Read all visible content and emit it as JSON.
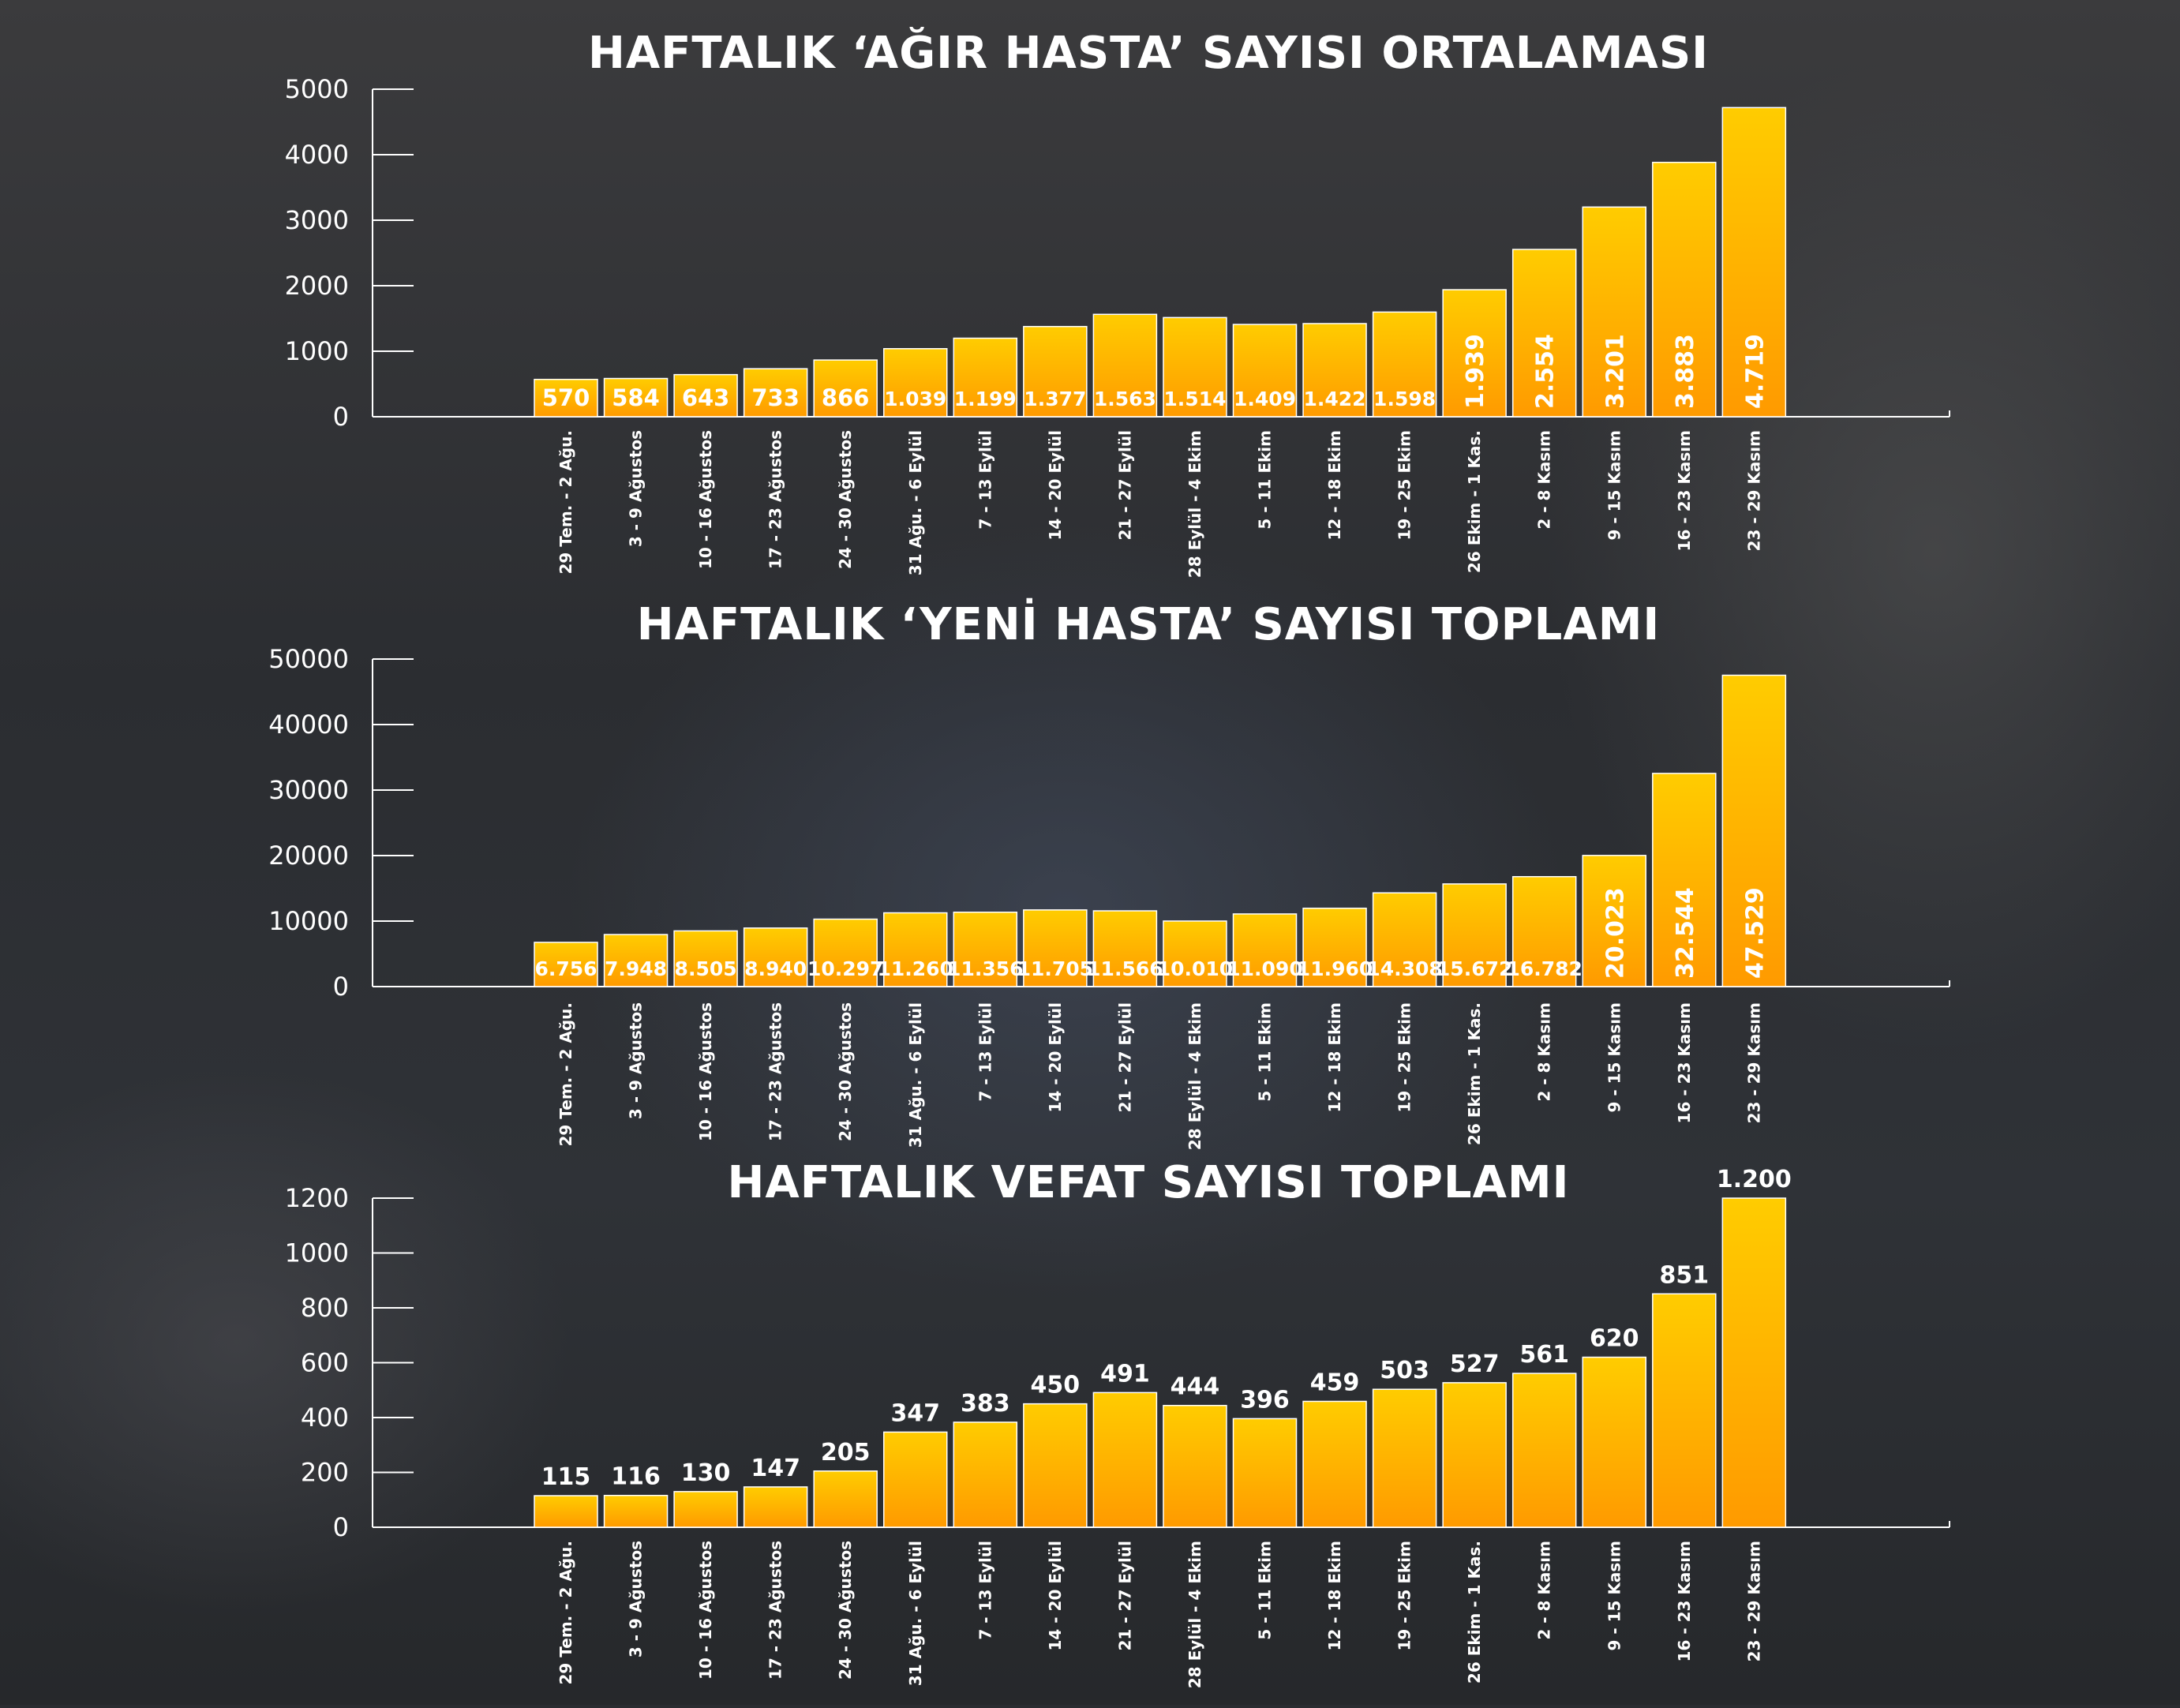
{
  "colors": {
    "bar_top": "#ffcc00",
    "bar_bottom": "#ff9a00",
    "text": "#ffffff"
  },
  "chart_data": [
    {
      "type": "bar",
      "title": "HAFTALIK ‘AĞIR HASTA’ SAYISI ORTALAMASI",
      "categories": [
        "29 Tem. - 2 Ağu.",
        "3 - 9 Ağustos",
        "10 - 16 Ağustos",
        "17 - 23 Ağustos",
        "24 - 30 Ağustos",
        "31 Ağu. - 6 Eylül",
        "7 - 13 Eylül",
        "14 - 20 Eylül",
        "21 - 27 Eylül",
        "28 Eylül - 4 Ekim",
        "5 - 11 Ekim",
        "12 - 18 Ekim",
        "19 - 25 Ekim",
        "26 Ekim - 1 Kas.",
        "2 - 8 Kasım",
        "9 - 15 Kasım",
        "16 - 23 Kasım",
        "23 - 29 Kasım"
      ],
      "values": [
        570,
        584,
        643,
        733,
        866,
        1039,
        1199,
        1377,
        1563,
        1514,
        1409,
        1422,
        1598,
        1939,
        2554,
        3201,
        3883,
        4719
      ],
      "value_labels": [
        "570",
        "584",
        "643",
        "733",
        "866",
        "1.039",
        "1.199",
        "1.377",
        "1.563",
        "1.514",
        "1.409",
        "1.422",
        "1.598",
        "1.939",
        "2.554",
        "3.201",
        "3.883",
        "4.719"
      ],
      "yticks": [
        "0",
        "1000",
        "2000",
        "3000",
        "4000",
        "5000"
      ],
      "ylim": [
        0,
        5000
      ],
      "label_mode": "auto",
      "grid": false
    },
    {
      "type": "bar",
      "title": "HAFTALIK ‘YENİ HASTA’ SAYISI TOPLAMI",
      "categories": [
        "29 Tem. - 2 Ağu.",
        "3 - 9 Ağustos",
        "10 - 16 Ağustos",
        "17 - 23 Ağustos",
        "24 - 30 Ağustos",
        "31 Ağu. - 6 Eylül",
        "7 - 13 Eylül",
        "14 - 20 Eylül",
        "21 - 27 Eylül",
        "28 Eylül - 4 Ekim",
        "5 - 11 Ekim",
        "12 - 18 Ekim",
        "19 - 25 Ekim",
        "26 Ekim - 1 Kas.",
        "2 - 8 Kasım",
        "9 - 15 Kasım",
        "16 - 23 Kasım",
        "23 - 29 Kasım"
      ],
      "values": [
        6756,
        7948,
        8505,
        8940,
        10297,
        11260,
        11356,
        11705,
        11566,
        10010,
        11090,
        11960,
        14308,
        15672,
        16782,
        20023,
        32544,
        47529
      ],
      "value_labels": [
        "6.756",
        "7.948",
        "8.505",
        "8.940",
        "10.297",
        "11.260",
        "11.356",
        "11.705",
        "11.566",
        "10.010",
        "11.090",
        "11.960",
        "14.308",
        "15.672",
        "16.782",
        "20.023",
        "32.544",
        "47.529"
      ],
      "yticks": [
        "0",
        "10000",
        "20000",
        "30000",
        "40000",
        "50000"
      ],
      "ylim": [
        0,
        50000
      ],
      "label_mode": "auto",
      "grid": false
    },
    {
      "type": "bar",
      "title": "HAFTALIK VEFAT SAYISI TOPLAMI",
      "categories": [
        "29 Tem. - 2 Ağu.",
        "3 - 9 Ağustos",
        "10 - 16 Ağustos",
        "17 - 23 Ağustos",
        "24 - 30 Ağustos",
        "31 Ağu. - 6 Eylül",
        "7 - 13 Eylül",
        "14 - 20 Eylül",
        "21 - 27 Eylül",
        "28 Eylül - 4 Ekim",
        "5 - 11 Ekim",
        "12 - 18 Ekim",
        "19 - 25 Ekim",
        "26 Ekim - 1 Kas.",
        "2 - 8 Kasım",
        "9 - 15 Kasım",
        "16 - 23 Kasım",
        "23 - 29 Kasım"
      ],
      "values": [
        115,
        116,
        130,
        147,
        205,
        347,
        383,
        450,
        491,
        444,
        396,
        459,
        503,
        527,
        561,
        620,
        851,
        1200
      ],
      "value_labels": [
        "115",
        "116",
        "130",
        "147",
        "205",
        "347",
        "383",
        "450",
        "491",
        "444",
        "396",
        "459",
        "503",
        "527",
        "561",
        "620",
        "851",
        "1.200"
      ],
      "yticks": [
        "0",
        "200",
        "400",
        "600",
        "800",
        "1000",
        "1200"
      ],
      "ylim": [
        0,
        1200
      ],
      "label_mode": "above",
      "grid": false
    }
  ]
}
